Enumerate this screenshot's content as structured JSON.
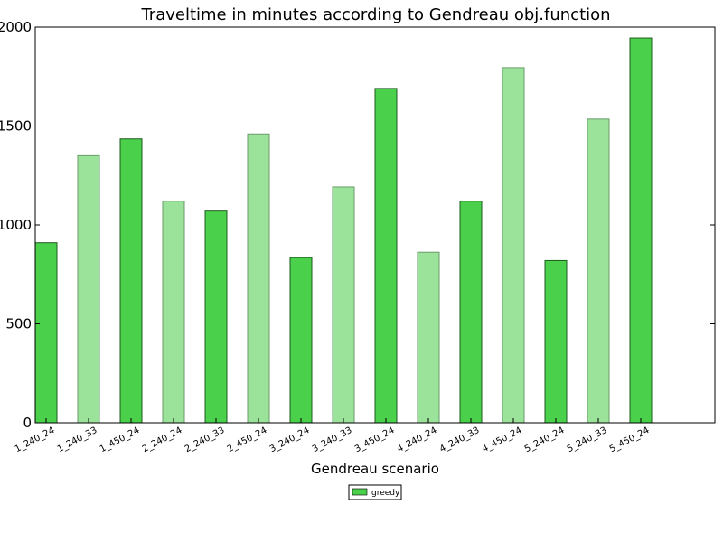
{
  "chart_data": {
    "type": "bar",
    "title": "Traveltime in minutes according to Gendreau obj.function",
    "xlabel": "Gendreau scenario",
    "ylabel": "",
    "ylim": [
      0,
      2000
    ],
    "yticks": [
      "0",
      "500",
      "1000",
      "1500",
      "2000"
    ],
    "categories": [
      "1_240_24",
      "1_240_33",
      "1_450_24",
      "2_240_24",
      "2_240_33",
      "2_450_24",
      "3_240_24",
      "3_240_33",
      "3_450_24",
      "4_240_24",
      "4_240_33",
      "4_450_24",
      "5_240_24",
      "5_240_33",
      "5_450_24"
    ],
    "values": [
      910,
      1350,
      1435,
      1120,
      1070,
      1460,
      835,
      1192,
      1690,
      862,
      1120,
      1795,
      820,
      1535,
      1945
    ],
    "grid": false,
    "legend": {
      "placement": "bottom-center",
      "entries": [
        "greedy"
      ]
    },
    "colors": {
      "strong": "#4bd04b",
      "light": "#9be39b",
      "edge_strong": "#1e5a1e",
      "edge_light": "#6a9a6a"
    }
  }
}
